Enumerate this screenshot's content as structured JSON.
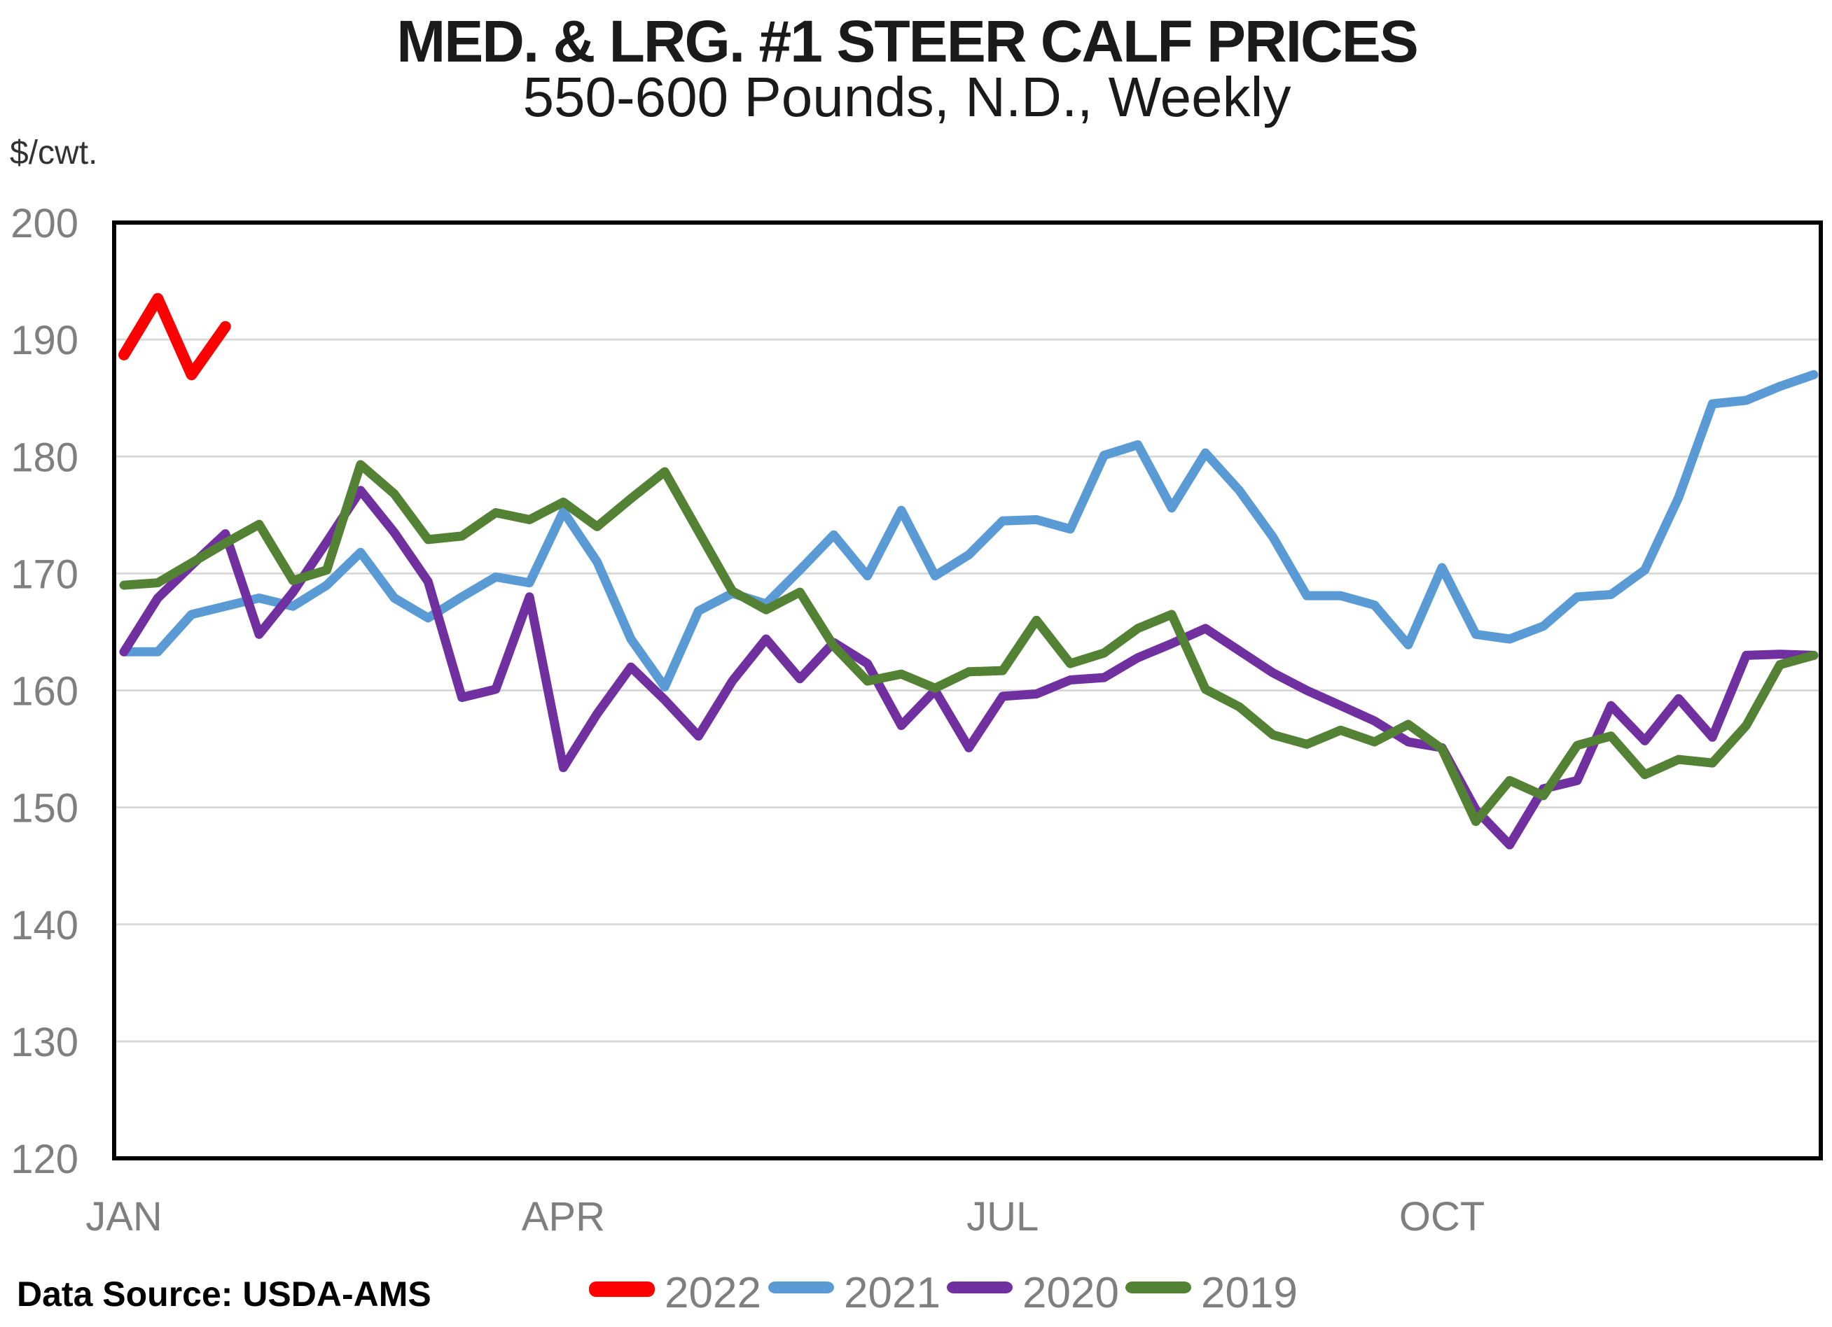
{
  "chart_data": {
    "type": "line",
    "title": "MED. & LRG. #1 STEER CALF PRICES",
    "subtitle": "550-600 Pounds, N.D., Weekly",
    "ylabel_unit": "$/cwt.",
    "ylim": [
      120,
      200
    ],
    "ytick_step": 10,
    "ytick_labels": [
      200,
      190,
      180,
      170,
      160,
      150,
      140,
      130,
      120
    ],
    "grid": "horizontal-only",
    "legend_position": "bottom-center",
    "weeks_per_year": 51,
    "month_ticks": [
      {
        "label": "JAN",
        "week": 0
      },
      {
        "label": "APR",
        "week": 13
      },
      {
        "label": "JUL",
        "week": 26
      },
      {
        "label": "OCT",
        "week": 39
      }
    ],
    "series": [
      {
        "name": "2022",
        "color": "#FF0000",
        "start_week": 0,
        "values": [
          188.7,
          193.5,
          187.0,
          191.1
        ]
      },
      {
        "name": "2021",
        "color": "#5B9BD5",
        "start_week": 0,
        "values": [
          163.3,
          163.3,
          166.5,
          167.2,
          167.9,
          167.2,
          169.0,
          171.8,
          167.9,
          166.2,
          168.0,
          169.7,
          169.2,
          175.3,
          171.0,
          164.4,
          160.3,
          166.8,
          168.3,
          167.4,
          170.3,
          173.3,
          169.8,
          175.4,
          169.8,
          171.6,
          174.5,
          174.6,
          173.8,
          180.1,
          181.0,
          175.6,
          180.3,
          177.1,
          173.1,
          168.1,
          168.1,
          167.3,
          163.9,
          170.5,
          164.8,
          164.4,
          165.5,
          168.0,
          168.2,
          170.3,
          176.5,
          184.5,
          184.8,
          186.0,
          187.0
        ]
      },
      {
        "name": "2020",
        "color": "#7030A0",
        "start_week": 0,
        "values": [
          163.3,
          167.9,
          170.7,
          173.4,
          164.8,
          168.4,
          172.7,
          177.1,
          173.5,
          169.3,
          159.4,
          160.1,
          168.0,
          153.4,
          158.0,
          162.0,
          159.2,
          156.1,
          160.8,
          164.4,
          161.0,
          164.1,
          162.3,
          157.0,
          160.0,
          155.1,
          159.5,
          159.7,
          160.9,
          161.1,
          162.8,
          164.0,
          165.3,
          163.4,
          161.5,
          160.0,
          158.7,
          157.4,
          155.6,
          155.1,
          149.8,
          146.8,
          151.6,
          152.3,
          158.7,
          155.7,
          159.3,
          156.0,
          163.0,
          163.1,
          163.0
        ]
      },
      {
        "name": "2019",
        "color": "#548235",
        "start_week": 0,
        "values": [
          169.0,
          169.2,
          170.9,
          172.6,
          174.2,
          169.4,
          170.3,
          179.3,
          176.8,
          172.9,
          173.2,
          175.2,
          174.6,
          176.1,
          174.0,
          176.4,
          178.7,
          173.6,
          168.5,
          166.9,
          168.4,
          163.8,
          160.8,
          161.4,
          160.2,
          161.6,
          161.7,
          166.0,
          162.3,
          163.2,
          165.3,
          166.5,
          160.1,
          158.6,
          156.2,
          155.4,
          156.6,
          155.6,
          157.1,
          155.0,
          148.8,
          152.3,
          151.0,
          155.3,
          156.1,
          152.8,
          154.1,
          153.8,
          157.0,
          162.2,
          163.0
        ]
      }
    ],
    "legend_order": [
      "2022",
      "2021",
      "2020",
      "2019"
    ]
  },
  "source": {
    "label": "Data Source: USDA-AMS"
  },
  "colors": {
    "gridline": "#D9D9D9",
    "axis_border": "#000000",
    "tick_label_gray": "#7F7F7F",
    "title_black": "#1A1A1A",
    "unit_label": "#333333",
    "source_black": "#000000"
  }
}
